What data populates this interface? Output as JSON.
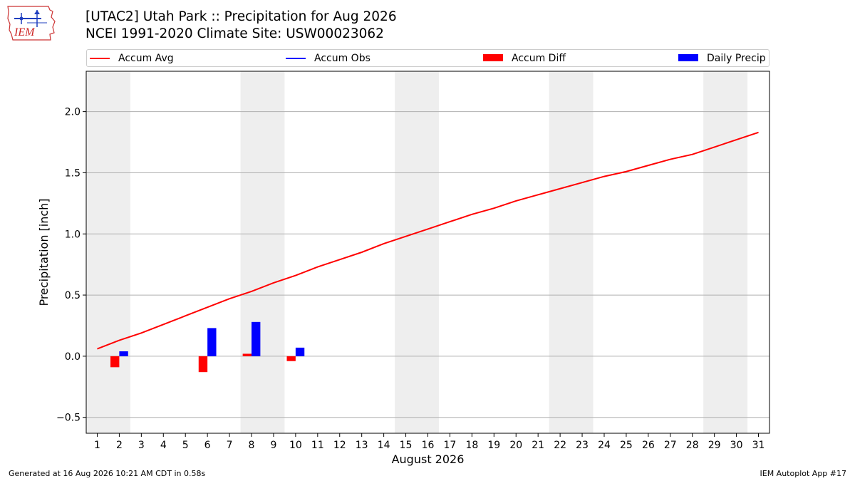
{
  "header": {
    "logo_text": "IEM",
    "title_line1": "[UTAC2] Utah Park :: Precipitation for Aug 2026",
    "title_line2": "NCEI 1991-2020 Climate Site: USW00023062"
  },
  "legend": {
    "items": [
      {
        "label": "Accum Avg",
        "kind": "line",
        "color": "#ff0000"
      },
      {
        "label": "Accum Obs",
        "kind": "line",
        "color": "#0000ff"
      },
      {
        "label": "Accum Diff",
        "kind": "patch",
        "color": "#ff0000"
      },
      {
        "label": "Daily Precip",
        "kind": "patch",
        "color": "#0000ff"
      }
    ]
  },
  "footer": {
    "left": "Generated at 16 Aug 2026 10:21 AM CDT in 0.58s",
    "right": "IEM Autoplot App #17"
  },
  "chart_data": {
    "type": "bar",
    "title": "[UTAC2] Utah Park :: Precipitation for Aug 2026",
    "subtitle": "NCEI 1991-2020 Climate Site: USW00023062",
    "xlabel": "August 2026",
    "ylabel": "Precipitation [inch]",
    "xlim": [
      0.5,
      31.5
    ],
    "ylim": [
      -0.63,
      2.33
    ],
    "yticks": [
      -0.5,
      0.0,
      0.5,
      1.0,
      1.5,
      2.0
    ],
    "ytick_labels": [
      "−0.5",
      "0.0",
      "0.5",
      "1.0",
      "1.5",
      "2.0"
    ],
    "xticks": [
      1,
      2,
      3,
      4,
      5,
      6,
      7,
      8,
      9,
      10,
      11,
      12,
      13,
      14,
      15,
      16,
      17,
      18,
      19,
      20,
      21,
      22,
      23,
      24,
      25,
      26,
      27,
      28,
      29,
      30,
      31
    ],
    "grid": "horizontal",
    "weekend_shading": [
      [
        1,
        2
      ],
      [
        8,
        9
      ],
      [
        15,
        16
      ],
      [
        22,
        23
      ],
      [
        29,
        30
      ]
    ],
    "weekend_color": "#eeeeee",
    "legend_position": "top",
    "series": [
      {
        "name": "Accum Avg",
        "kind": "line",
        "color": "#ff0000",
        "x": [
          1,
          2,
          3,
          4,
          5,
          6,
          7,
          8,
          9,
          10,
          11,
          12,
          13,
          14,
          15,
          16,
          17,
          18,
          19,
          20,
          21,
          22,
          23,
          24,
          25,
          26,
          27,
          28,
          29,
          30,
          31
        ],
        "values": [
          0.06,
          0.13,
          0.19,
          0.26,
          0.33,
          0.4,
          0.47,
          0.53,
          0.6,
          0.66,
          0.73,
          0.79,
          0.85,
          0.92,
          0.98,
          1.04,
          1.1,
          1.16,
          1.21,
          1.27,
          1.32,
          1.37,
          1.42,
          1.47,
          1.51,
          1.56,
          1.61,
          1.65,
          1.71,
          1.77,
          1.83
        ]
      },
      {
        "name": "Accum Diff",
        "kind": "bar",
        "color": "#ff0000",
        "x": [
          2,
          6,
          8,
          10
        ],
        "values": [
          -0.09,
          -0.13,
          0.02,
          -0.04
        ]
      },
      {
        "name": "Daily Precip",
        "kind": "bar",
        "color": "#0000ff",
        "x": [
          2,
          6,
          8,
          10
        ],
        "values": [
          0.04,
          0.23,
          0.28,
          0.07
        ]
      },
      {
        "name": "Accum Obs",
        "kind": "line",
        "color": "#0000ff",
        "x": [],
        "values": []
      }
    ]
  }
}
